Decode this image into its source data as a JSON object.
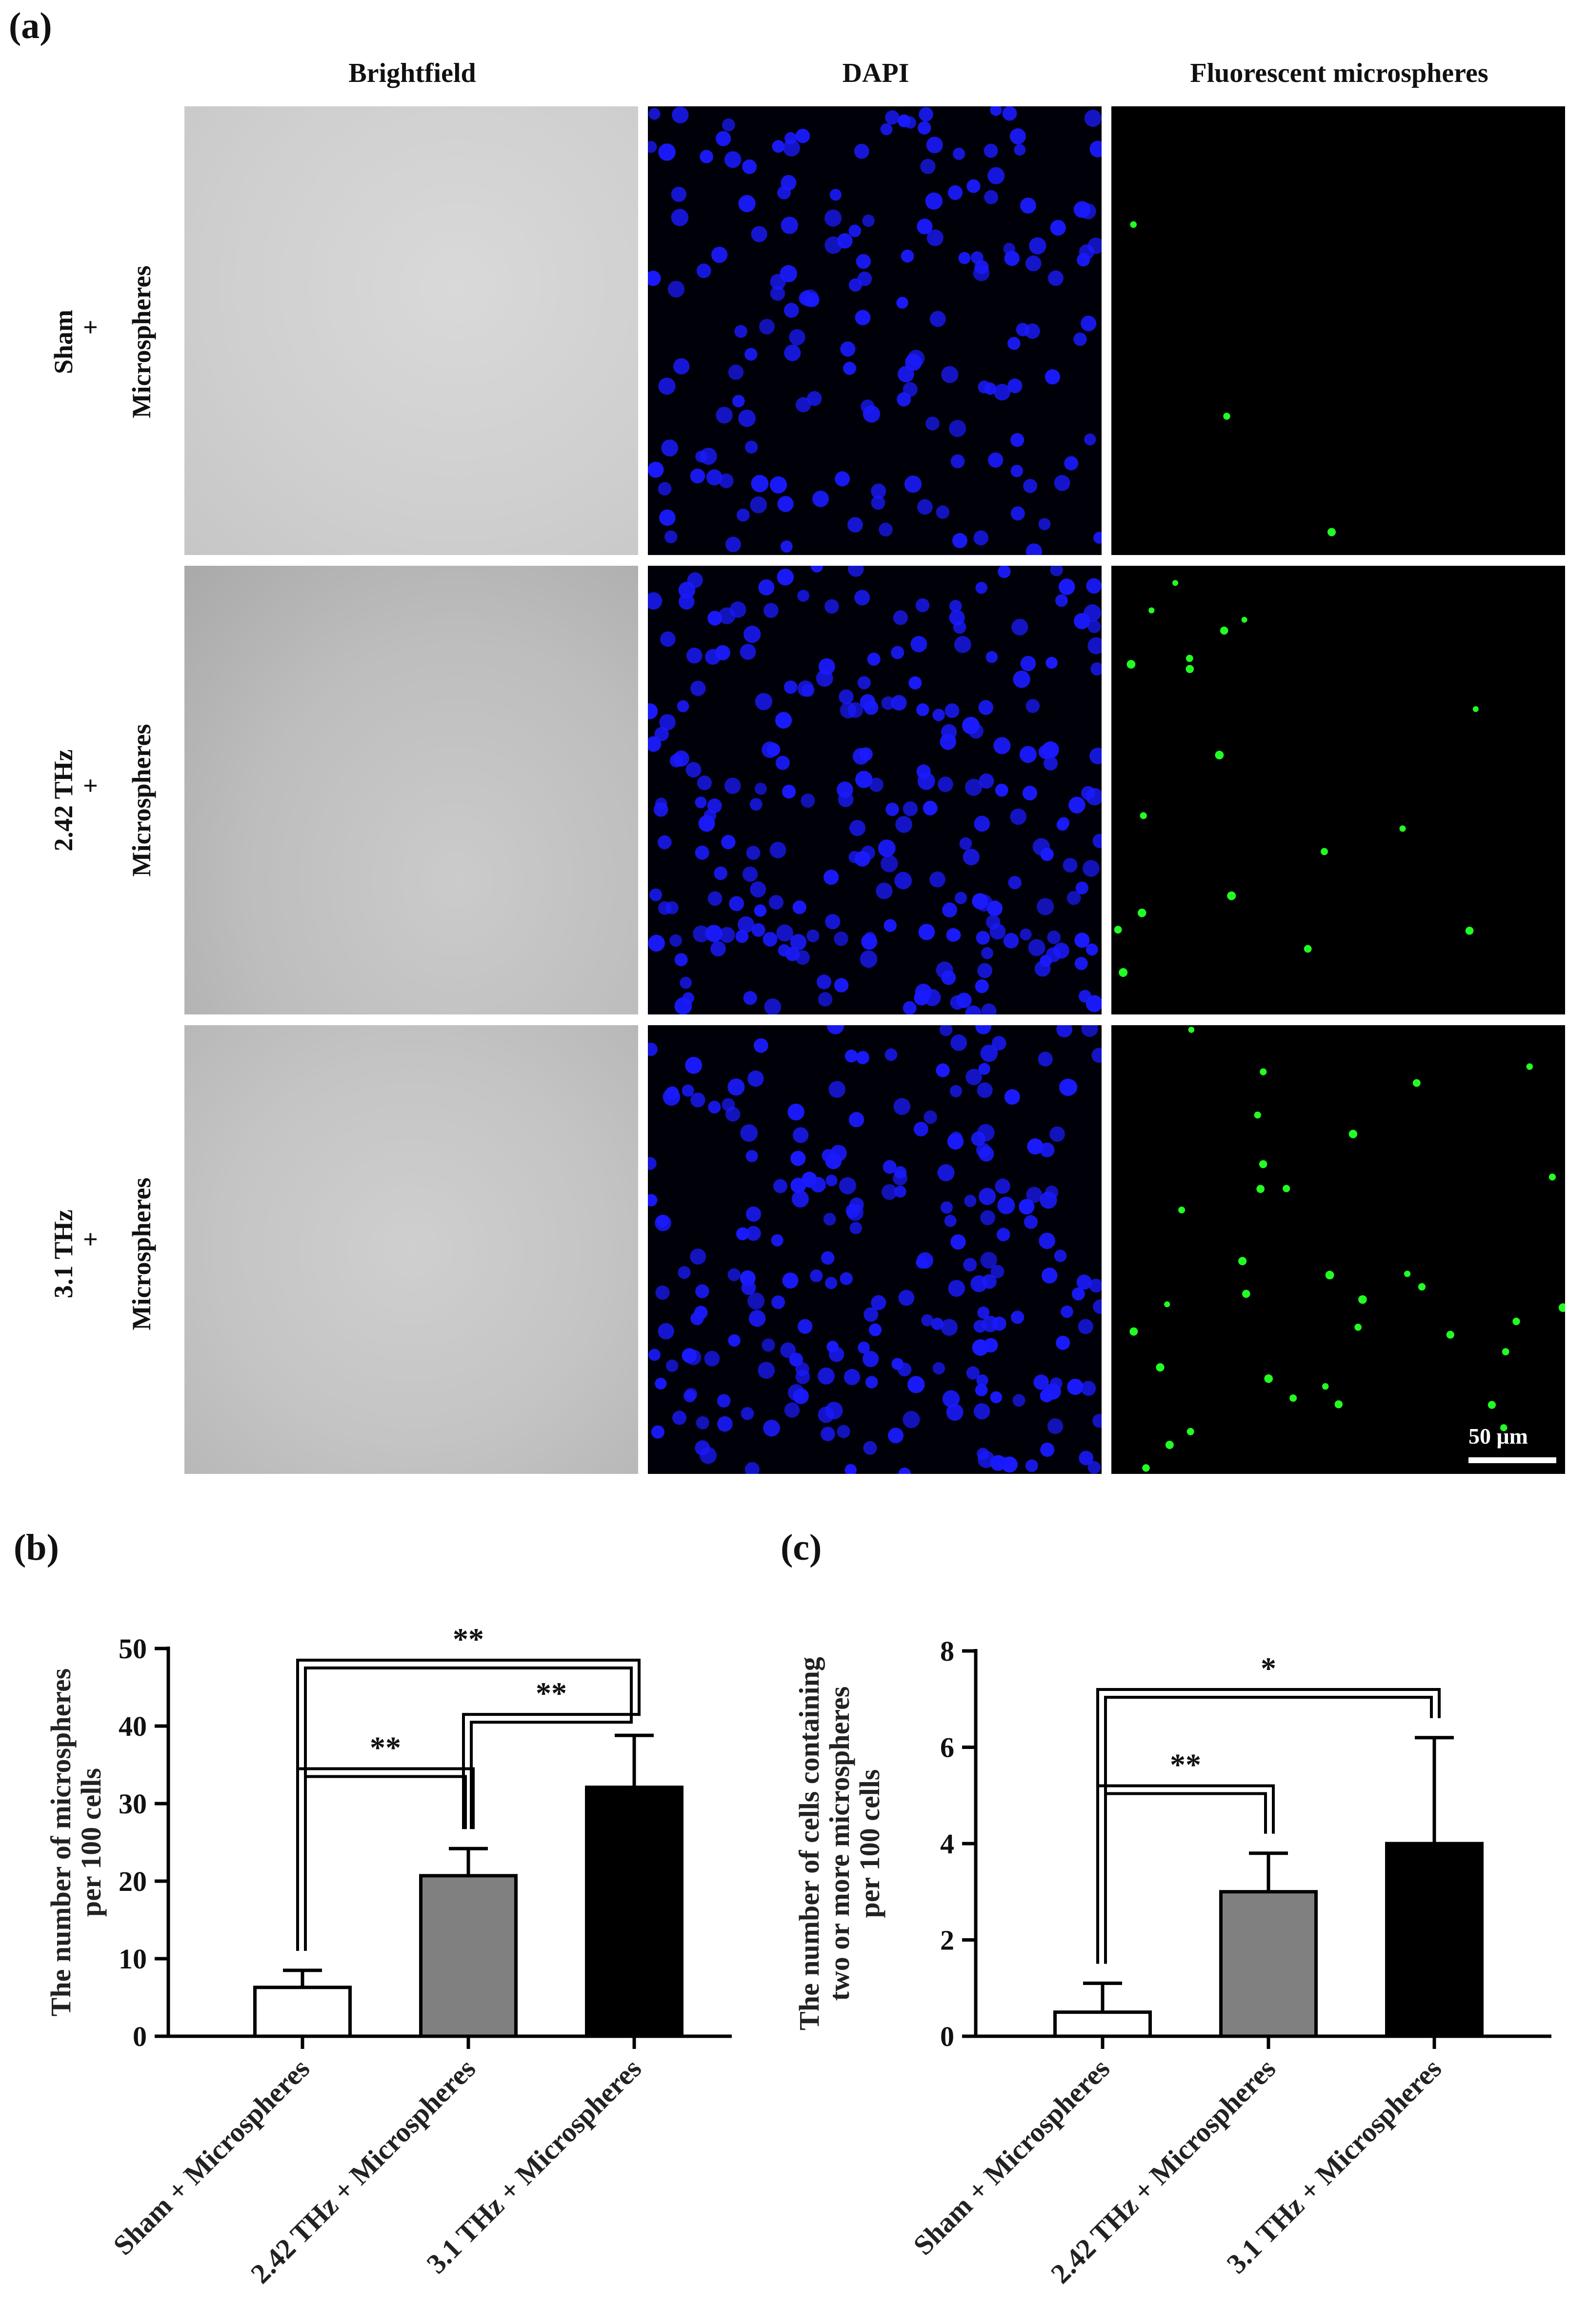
{
  "panel_a": {
    "label": "(a)",
    "columns": [
      "Brightfield",
      "DAPI",
      "Fluorescent microspheres"
    ],
    "rows": [
      {
        "group": "Sham",
        "plus": "+",
        "sub": "Microspheres"
      },
      {
        "group": "2.42 THz",
        "plus": "+",
        "sub": "Microspheres"
      },
      {
        "group": "3.1 THz",
        "plus": "+",
        "sub": "Microspheres"
      }
    ],
    "scale_bar": "50 μm",
    "colors": {
      "dapi_nuclei": "#1a1aff",
      "microspheres": "#22ff22"
    }
  },
  "panel_b_label": "(b)",
  "panel_c_label": "(c)",
  "chart_data": [
    {
      "type": "bar",
      "title": "",
      "categories": [
        "Sham + Microspheres",
        "2.42 THz + Microspheres",
        "3.1 THz + Microspheres"
      ],
      "values": [
        6.3,
        20.7,
        32.1
      ],
      "errors": [
        2.2,
        3.5,
        6.7
      ],
      "ylabel_lines": [
        "The number of microspheres",
        "per 100 cells"
      ],
      "ylim": [
        0,
        50
      ],
      "yticks": [
        0,
        10,
        20,
        30,
        40,
        50
      ],
      "bar_colors": [
        "#ffffff",
        "#808080",
        "#000000"
      ],
      "significance": [
        {
          "from": 0,
          "to": 1,
          "label": "**"
        },
        {
          "from": 1,
          "to": 2,
          "label": "**"
        },
        {
          "from": 0,
          "to": 2,
          "label": "**"
        }
      ]
    },
    {
      "type": "bar",
      "title": "",
      "categories": [
        "Sham + Microspheres",
        "2.42 THz + Microspheres",
        "3.1 THz + Microspheres"
      ],
      "values": [
        0.5,
        3.0,
        4.0
      ],
      "errors": [
        0.6,
        0.8,
        2.2
      ],
      "ylabel_lines": [
        "The number of cells containing",
        "two or more microspheres",
        "per 100 cells"
      ],
      "ylim": [
        0,
        8
      ],
      "yticks": [
        0,
        2,
        4,
        6,
        8
      ],
      "bar_colors": [
        "#ffffff",
        "#808080",
        "#000000"
      ],
      "significance": [
        {
          "from": 0,
          "to": 1,
          "label": "**"
        },
        {
          "from": 0,
          "to": 2,
          "label": "*"
        }
      ]
    }
  ]
}
